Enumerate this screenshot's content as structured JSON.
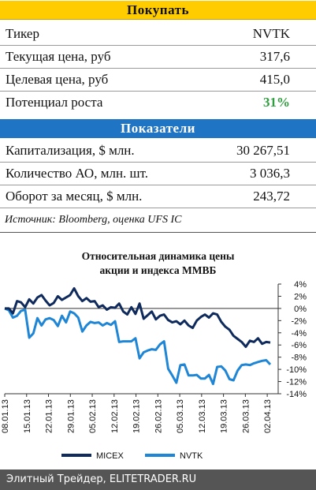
{
  "buy_header": "Покупать",
  "buy_rows": [
    {
      "label": "Тикер",
      "value": "NVTK"
    },
    {
      "label": "Текущая цена, руб",
      "value": "317,6"
    },
    {
      "label": "Целевая цена, руб",
      "value": "415,0"
    },
    {
      "label": "Потенциал роста",
      "value": "31%"
    }
  ],
  "indicators_header": "Показатели",
  "indicator_rows": [
    {
      "label": "Капитализация, $ млн.",
      "value": "30 267,51"
    },
    {
      "label": "Количество АО, млн. шт.",
      "value": "3 036,3"
    },
    {
      "label": "Оборот за месяц, $ млн.",
      "value": "243,72"
    }
  ],
  "source": "Источник: Bloomberg, оценка UFS IC",
  "colors": {
    "buy_band": "#ffcc00",
    "indicators_band": "#1f74c4",
    "upside": "#2e9e3e",
    "micex": "#0f2a5c",
    "nvtk": "#1f86d6",
    "footer": "#555555"
  },
  "chart_data": {
    "type": "line",
    "title": "Относительная динамика цены акции и индекса ММВБ",
    "title_lines": [
      "Относительная динамика цены",
      "акции и индекса ММВБ"
    ],
    "x_ticks": [
      "08.01.13",
      "15.01.13",
      "22.01.13",
      "29.01.13",
      "05.02.13",
      "12.02.13",
      "19.02.13",
      "26.02.13",
      "05.03.13",
      "12.03.13",
      "19.03.13",
      "26.03.13",
      "02.04.13"
    ],
    "y_ticks": [
      "4%",
      "2%",
      "0%",
      "-2%",
      "-4%",
      "-6%",
      "-8%",
      "-10%",
      "-12%",
      "-14%"
    ],
    "ylim": [
      -14,
      4
    ],
    "legend_position": "bottom",
    "series": [
      {
        "name": "MICEX",
        "values": [
          0,
          0,
          -0.8,
          1.2,
          1.0,
          0.2,
          1.5,
          0.8,
          1.8,
          2.2,
          1.3,
          0.5,
          0.9,
          2.0,
          1.4,
          1.8,
          2.2,
          3.3,
          2.0,
          1.2,
          1.7,
          1.1,
          1.2,
          0.2,
          0.5,
          -0.2,
          0.2,
          0.1,
          0.8,
          -0.5,
          -1.0,
          0.2,
          -0.9,
          0.8,
          -1.7,
          -1.1,
          -0.5,
          -1.8,
          -1.2,
          -1.0,
          -1.9,
          -2.3,
          -2.1,
          -2.6,
          -2.0,
          -2.8,
          -3.2,
          -2.0,
          -1.4,
          -1.0,
          -1.5,
          -0.8,
          -1.0,
          -2.2,
          -3.0,
          -3.5,
          -4.5,
          -5.0,
          -5.5,
          -6.3,
          -5.3,
          -5.5,
          -4.9,
          -5.8,
          -5.5,
          -5.6
        ]
      },
      {
        "name": "NVTK",
        "values": [
          0,
          -0.3,
          -1.5,
          -1.2,
          -0.4,
          -0.2,
          -4.8,
          -4.1,
          -1.6,
          -2.8,
          -1.8,
          -1.6,
          -1.9,
          -2.9,
          -1.2,
          -2.3,
          -0.5,
          -0.8,
          -1.5,
          -3.8,
          -2.8,
          -2.2,
          -2.4,
          -2.3,
          -2.8,
          -2.4,
          -2.7,
          -2.1,
          -5.5,
          -5.4,
          -5.4,
          -5.4,
          -4.9,
          -8.2,
          -7.2,
          -6.9,
          -6.7,
          -6.8,
          -5.9,
          -5.4,
          -9.9,
          -11.0,
          -12.2,
          -9.3,
          -9.2,
          -11.0,
          -11.0,
          -10.9,
          -11.5,
          -11.5,
          -10.9,
          -12.4,
          -9.6,
          -9.5,
          -10.2,
          -11.6,
          -11.8,
          -10.2,
          -9.3,
          -9.2,
          -9.3,
          -9.0,
          -8.8,
          -8.6,
          -8.5,
          -9.2
        ]
      }
    ]
  },
  "footer": "Элитный Трейдер, ELITETRADER.RU"
}
